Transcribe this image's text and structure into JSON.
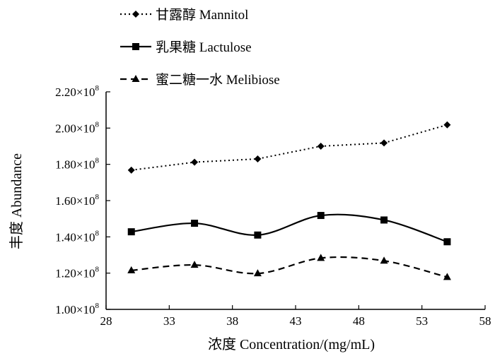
{
  "chart_data": {
    "type": "line",
    "xlabel": "浓度 Concentration/(mg/mL)",
    "ylabel": "丰度 Abundance",
    "xlim": [
      28,
      58
    ],
    "ylim": [
      100000000,
      220000000
    ],
    "x_ticks": [
      28,
      33,
      38,
      43,
      48,
      53,
      58
    ],
    "x_tick_labels": [
      "28",
      "33",
      "38",
      "43",
      "48",
      "53",
      "58"
    ],
    "y_ticks": [
      100000000,
      120000000,
      140000000,
      160000000,
      180000000,
      200000000,
      220000000
    ],
    "y_tick_labels": [
      "1.00×10",
      "1.20×10",
      "1.40×10",
      "1.60×10",
      "1.80×10",
      "2.00×10",
      "2.20×10"
    ],
    "y_tick_exponent": "8",
    "grid": false,
    "legend_position": "top-left, outside plot",
    "x": [
      30,
      35,
      40,
      45,
      50,
      55
    ],
    "series": [
      {
        "name": "甘露醇 Mannitol",
        "values": [
          176800000,
          181200000,
          183000000,
          190000000,
          191800000,
          201800000
        ],
        "line_style": "dotted",
        "marker": "diamond",
        "smooth": false
      },
      {
        "name": "乳果糖 Lactulose",
        "values": [
          142800000,
          147500000,
          141000000,
          151800000,
          149300000,
          137300000
        ],
        "line_style": "solid",
        "marker": "square",
        "smooth": true
      },
      {
        "name": "蜜二糖一水 Melibiose",
        "values": [
          121500000,
          124500000,
          119800000,
          128300000,
          126800000,
          117800000
        ],
        "line_style": "dashed",
        "marker": "triangle",
        "smooth": true
      }
    ],
    "colors": {
      "lines": "#000000",
      "background": "#ffffff"
    }
  }
}
